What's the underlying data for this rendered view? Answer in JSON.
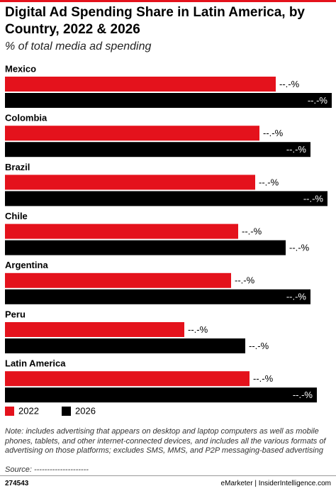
{
  "chart_data": {
    "type": "hbar",
    "title": "Digital Ad Spending Share in Latin America, by Country, 2022 & 2026",
    "subtitle": "% of total media ad spending",
    "categories": [
      "Mexico",
      "Colombia",
      "Brazil",
      "Chile",
      "Argentina",
      "Peru",
      "Latin America"
    ],
    "series": [
      {
        "name": "2022",
        "color": "#e4121c",
        "values": [
          38.2,
          35.9,
          35.3,
          32.9,
          31.9,
          25.3,
          34.5
        ],
        "value_labels": [
          "--.-%",
          "--.-%",
          "--.-%",
          "--.-%",
          "--.-%",
          "--.-%",
          "--.-%"
        ]
      },
      {
        "name": "2026",
        "color": "#000000",
        "values": [
          46.1,
          43.1,
          45.5,
          39.6,
          43.1,
          33.9,
          44.0
        ],
        "value_labels": [
          "--.-%",
          "--.-%",
          "--.-%",
          "--.-%",
          "--.-%",
          "--.-%",
          "--.-%"
        ]
      }
    ],
    "legend": "bottom-left",
    "note": "Note: includes advertising that appears on desktop and laptop computers as well as mobile phones, tablets, and other internet-connected devices, and includes all the various formats of advertising on those platforms; excludes SMS, MMS, and P2P messaging-based advertising",
    "source": "Source: ---------------------",
    "chart_id": "274543",
    "footer": "eMarketer | InsiderIntelligence.com"
  }
}
